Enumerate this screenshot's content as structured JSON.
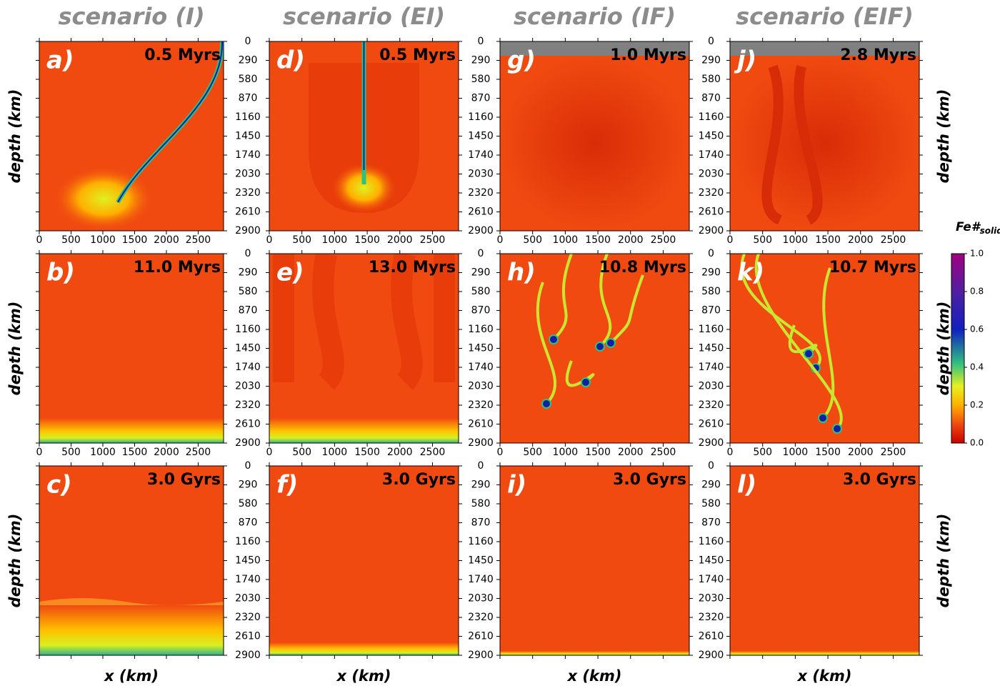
{
  "columns": [
    "scenario (I)",
    "scenario (EI)",
    "scenario (IF)",
    "scenario (EIF)"
  ],
  "rows": [
    [
      {
        "label": "a)",
        "time": "0.5 Myrs"
      },
      {
        "label": "d)",
        "time": "0.5 Myrs"
      },
      {
        "label": "g)",
        "time": "1.0 Myrs"
      },
      {
        "label": "j)",
        "time": "2.8 Myrs"
      }
    ],
    [
      {
        "label": "b)",
        "time": "11.0 Myrs"
      },
      {
        "label": "e)",
        "time": "13.0 Myrs"
      },
      {
        "label": "h)",
        "time": "10.8 Myrs"
      },
      {
        "label": "k)",
        "time": "10.7 Myrs"
      }
    ],
    [
      {
        "label": "c)",
        "time": "3.0 Gyrs"
      },
      {
        "label": "f)",
        "time": "3.0 Gyrs"
      },
      {
        "label": "i)",
        "time": "3.0 Gyrs"
      },
      {
        "label": "l)",
        "time": "3.0 Gyrs"
      }
    ]
  ],
  "x_axis": {
    "label": "x (km)",
    "range": [
      0,
      2900
    ],
    "ticks": [
      0,
      500,
      1000,
      1500,
      2000,
      2500
    ]
  },
  "depth_axis": {
    "label": "depth (km)",
    "range": [
      0,
      2900
    ],
    "ticks": [
      0,
      290,
      580,
      870,
      1160,
      1450,
      1740,
      2030,
      2320,
      2610,
      2900
    ]
  },
  "colorbar": {
    "title": {
      "main": "Fe#",
      "sub": "solid"
    },
    "range": [
      0,
      1
    ],
    "ticks": [
      {
        "value": 0,
        "label": "0.0"
      },
      0.2,
      0.4,
      0.6,
      0.8,
      {
        "value": 1,
        "label": "1.0"
      }
    ]
  }
}
